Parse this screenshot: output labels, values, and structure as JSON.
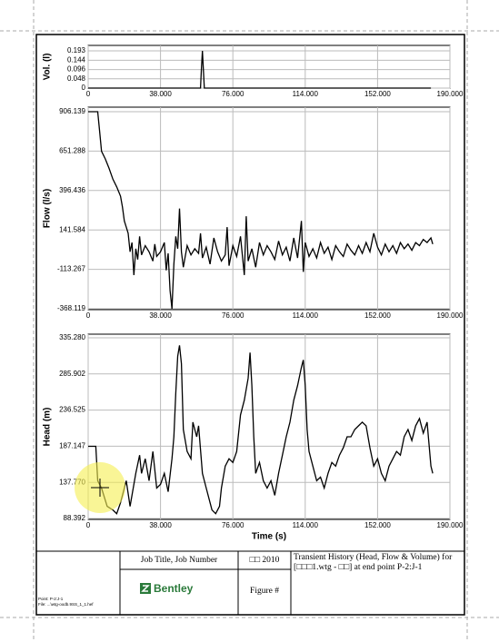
{
  "chart_data": [
    {
      "type": "line",
      "y_label": "Vol. (l)",
      "color": "#000000",
      "grid": true,
      "xlim": [
        0,
        190
      ],
      "xticks": [
        0,
        {
          "value": 38,
          "label": "38.000"
        },
        {
          "value": 76,
          "label": "76.000"
        },
        {
          "value": 114,
          "label": "114.000"
        },
        {
          "value": 152,
          "label": "152.000"
        },
        {
          "value": 190,
          "label": "190.000"
        }
      ],
      "ylim": [
        0,
        0.193
      ],
      "yticks": [
        0,
        0.048,
        0.096,
        0.144,
        0.193
      ],
      "x": [
        0,
        59,
        59.5,
        60,
        60.5,
        61,
        180
      ],
      "values": [
        0,
        0,
        0.1,
        0.193,
        0.1,
        0,
        0
      ]
    },
    {
      "type": "line",
      "y_label": "Flow (l/s)",
      "color": "#000000",
      "grid": true,
      "xlim": [
        0,
        190
      ],
      "xticks": [
        0,
        {
          "value": 38,
          "label": "38.000"
        },
        {
          "value": 76,
          "label": "76.000"
        },
        {
          "value": 114,
          "label": "114.000"
        },
        {
          "value": 152,
          "label": "152.000"
        },
        {
          "value": 190,
          "label": "190.000"
        }
      ],
      "ylim": [
        -368.119,
        906.139
      ],
      "yticks": [
        -368.119,
        -113.267,
        141.584,
        396.436,
        651.288,
        906.139
      ],
      "x": [
        0,
        5,
        6,
        7,
        9,
        11,
        13,
        15,
        17,
        18,
        19,
        20,
        21,
        22,
        23,
        24,
        25,
        26,
        27,
        28,
        30,
        32,
        34,
        35,
        36,
        38,
        40,
        41,
        42,
        43,
        44,
        45,
        46,
        47,
        48,
        49,
        50,
        52,
        54,
        56,
        58,
        59,
        60,
        62,
        64,
        66,
        68,
        70,
        72,
        73,
        74,
        76,
        78,
        80,
        82,
        83,
        84,
        86,
        88,
        90,
        92,
        94,
        96,
        98,
        100,
        102,
        104,
        106,
        108,
        110,
        112,
        113,
        114,
        116,
        118,
        120,
        122,
        124,
        126,
        128,
        130,
        132,
        134,
        136,
        138,
        140,
        142,
        144,
        146,
        148,
        150,
        152,
        154,
        156,
        158,
        160,
        162,
        164,
        166,
        168,
        170,
        172,
        174,
        176,
        178,
        180,
        181
      ],
      "values": [
        906,
        906,
        780,
        650,
        600,
        540,
        470,
        420,
        360,
        290,
        200,
        160,
        120,
        0,
        60,
        -150,
        20,
        -50,
        100,
        -20,
        40,
        0,
        -60,
        50,
        -30,
        0,
        60,
        -120,
        -10,
        -250,
        -368,
        -80,
        100,
        20,
        280,
        0,
        -100,
        40,
        -20,
        20,
        -10,
        120,
        -40,
        30,
        -80,
        90,
        0,
        -60,
        -20,
        160,
        -90,
        40,
        -30,
        100,
        -150,
        230,
        -60,
        20,
        -100,
        60,
        -20,
        40,
        0,
        -50,
        70,
        -20,
        30,
        -60,
        90,
        -40,
        200,
        -130,
        60,
        -30,
        20,
        -40,
        60,
        -10,
        30,
        -50,
        40,
        0,
        -30,
        50,
        10,
        -20,
        40,
        -10,
        60,
        0,
        120,
        30,
        -20,
        50,
        0,
        40,
        -10,
        60,
        20,
        50,
        10,
        60,
        40,
        80,
        60,
        90,
        50
      ]
    },
    {
      "type": "line",
      "y_label": "Head (m)",
      "x_label": "Time (s)",
      "color": "#000000",
      "grid": true,
      "xlim": [
        0,
        190
      ],
      "xticks": [
        0,
        {
          "value": 38,
          "label": "38.000"
        },
        {
          "value": 76,
          "label": "76.000"
        },
        {
          "value": 114,
          "label": "114.000"
        },
        {
          "value": 152,
          "label": "152.000"
        },
        {
          "value": 190,
          "label": "190.000"
        }
      ],
      "ylim": [
        88.392,
        335.28
      ],
      "yticks": [
        88.392,
        {
          "value": 137.77,
          "label": "137.770"
        },
        187.147,
        236.525,
        285.902,
        {
          "value": 335.28,
          "label": "335.280"
        }
      ],
      "x": [
        0,
        4,
        5,
        7,
        10,
        13,
        15,
        17,
        20,
        22,
        25,
        27,
        28,
        30,
        32,
        34,
        36,
        38,
        40,
        42,
        44,
        45,
        46,
        47,
        48,
        49,
        50,
        52,
        54,
        55,
        57,
        58,
        60,
        62,
        64,
        65,
        67,
        69,
        70,
        72,
        74,
        76,
        78,
        80,
        82,
        84,
        85,
        86,
        87,
        88,
        90,
        92,
        94,
        96,
        98,
        100,
        102,
        104,
        106,
        108,
        110,
        112,
        113,
        114,
        115,
        116,
        118,
        120,
        122,
        124,
        126,
        128,
        130,
        132,
        134,
        136,
        138,
        140,
        142,
        144,
        146,
        148,
        150,
        152,
        154,
        156,
        158,
        160,
        162,
        164,
        166,
        168,
        170,
        172,
        174,
        176,
        178,
        179,
        180,
        181
      ],
      "values": [
        187,
        187,
        140,
        130,
        105,
        100,
        95,
        110,
        140,
        105,
        150,
        175,
        150,
        170,
        140,
        180,
        130,
        135,
        150,
        125,
        170,
        200,
        260,
        310,
        325,
        300,
        210,
        180,
        170,
        220,
        200,
        215,
        150,
        130,
        110,
        100,
        95,
        105,
        130,
        160,
        170,
        165,
        180,
        230,
        250,
        280,
        315,
        270,
        200,
        150,
        165,
        140,
        130,
        140,
        120,
        150,
        175,
        200,
        220,
        250,
        270,
        295,
        305,
        270,
        210,
        180,
        160,
        140,
        145,
        130,
        150,
        165,
        160,
        175,
        185,
        200,
        200,
        210,
        215,
        220,
        215,
        185,
        160,
        170,
        150,
        140,
        160,
        170,
        180,
        175,
        200,
        210,
        195,
        215,
        225,
        205,
        220,
        190,
        160,
        150
      ]
    }
  ],
  "title_block": {
    "job": "Job Title, Job Number",
    "year": "□□ 2010",
    "logo": "Bentley",
    "figure": "Figure #",
    "description": "Transient History (Head, Flow & Volume) for [□□□1.wtg - □□] at end point P-2:J-1",
    "point": "Point: P-2:J-1",
    "file": "File: ...\\wtg-oodb.9SS_1_1.hef"
  }
}
